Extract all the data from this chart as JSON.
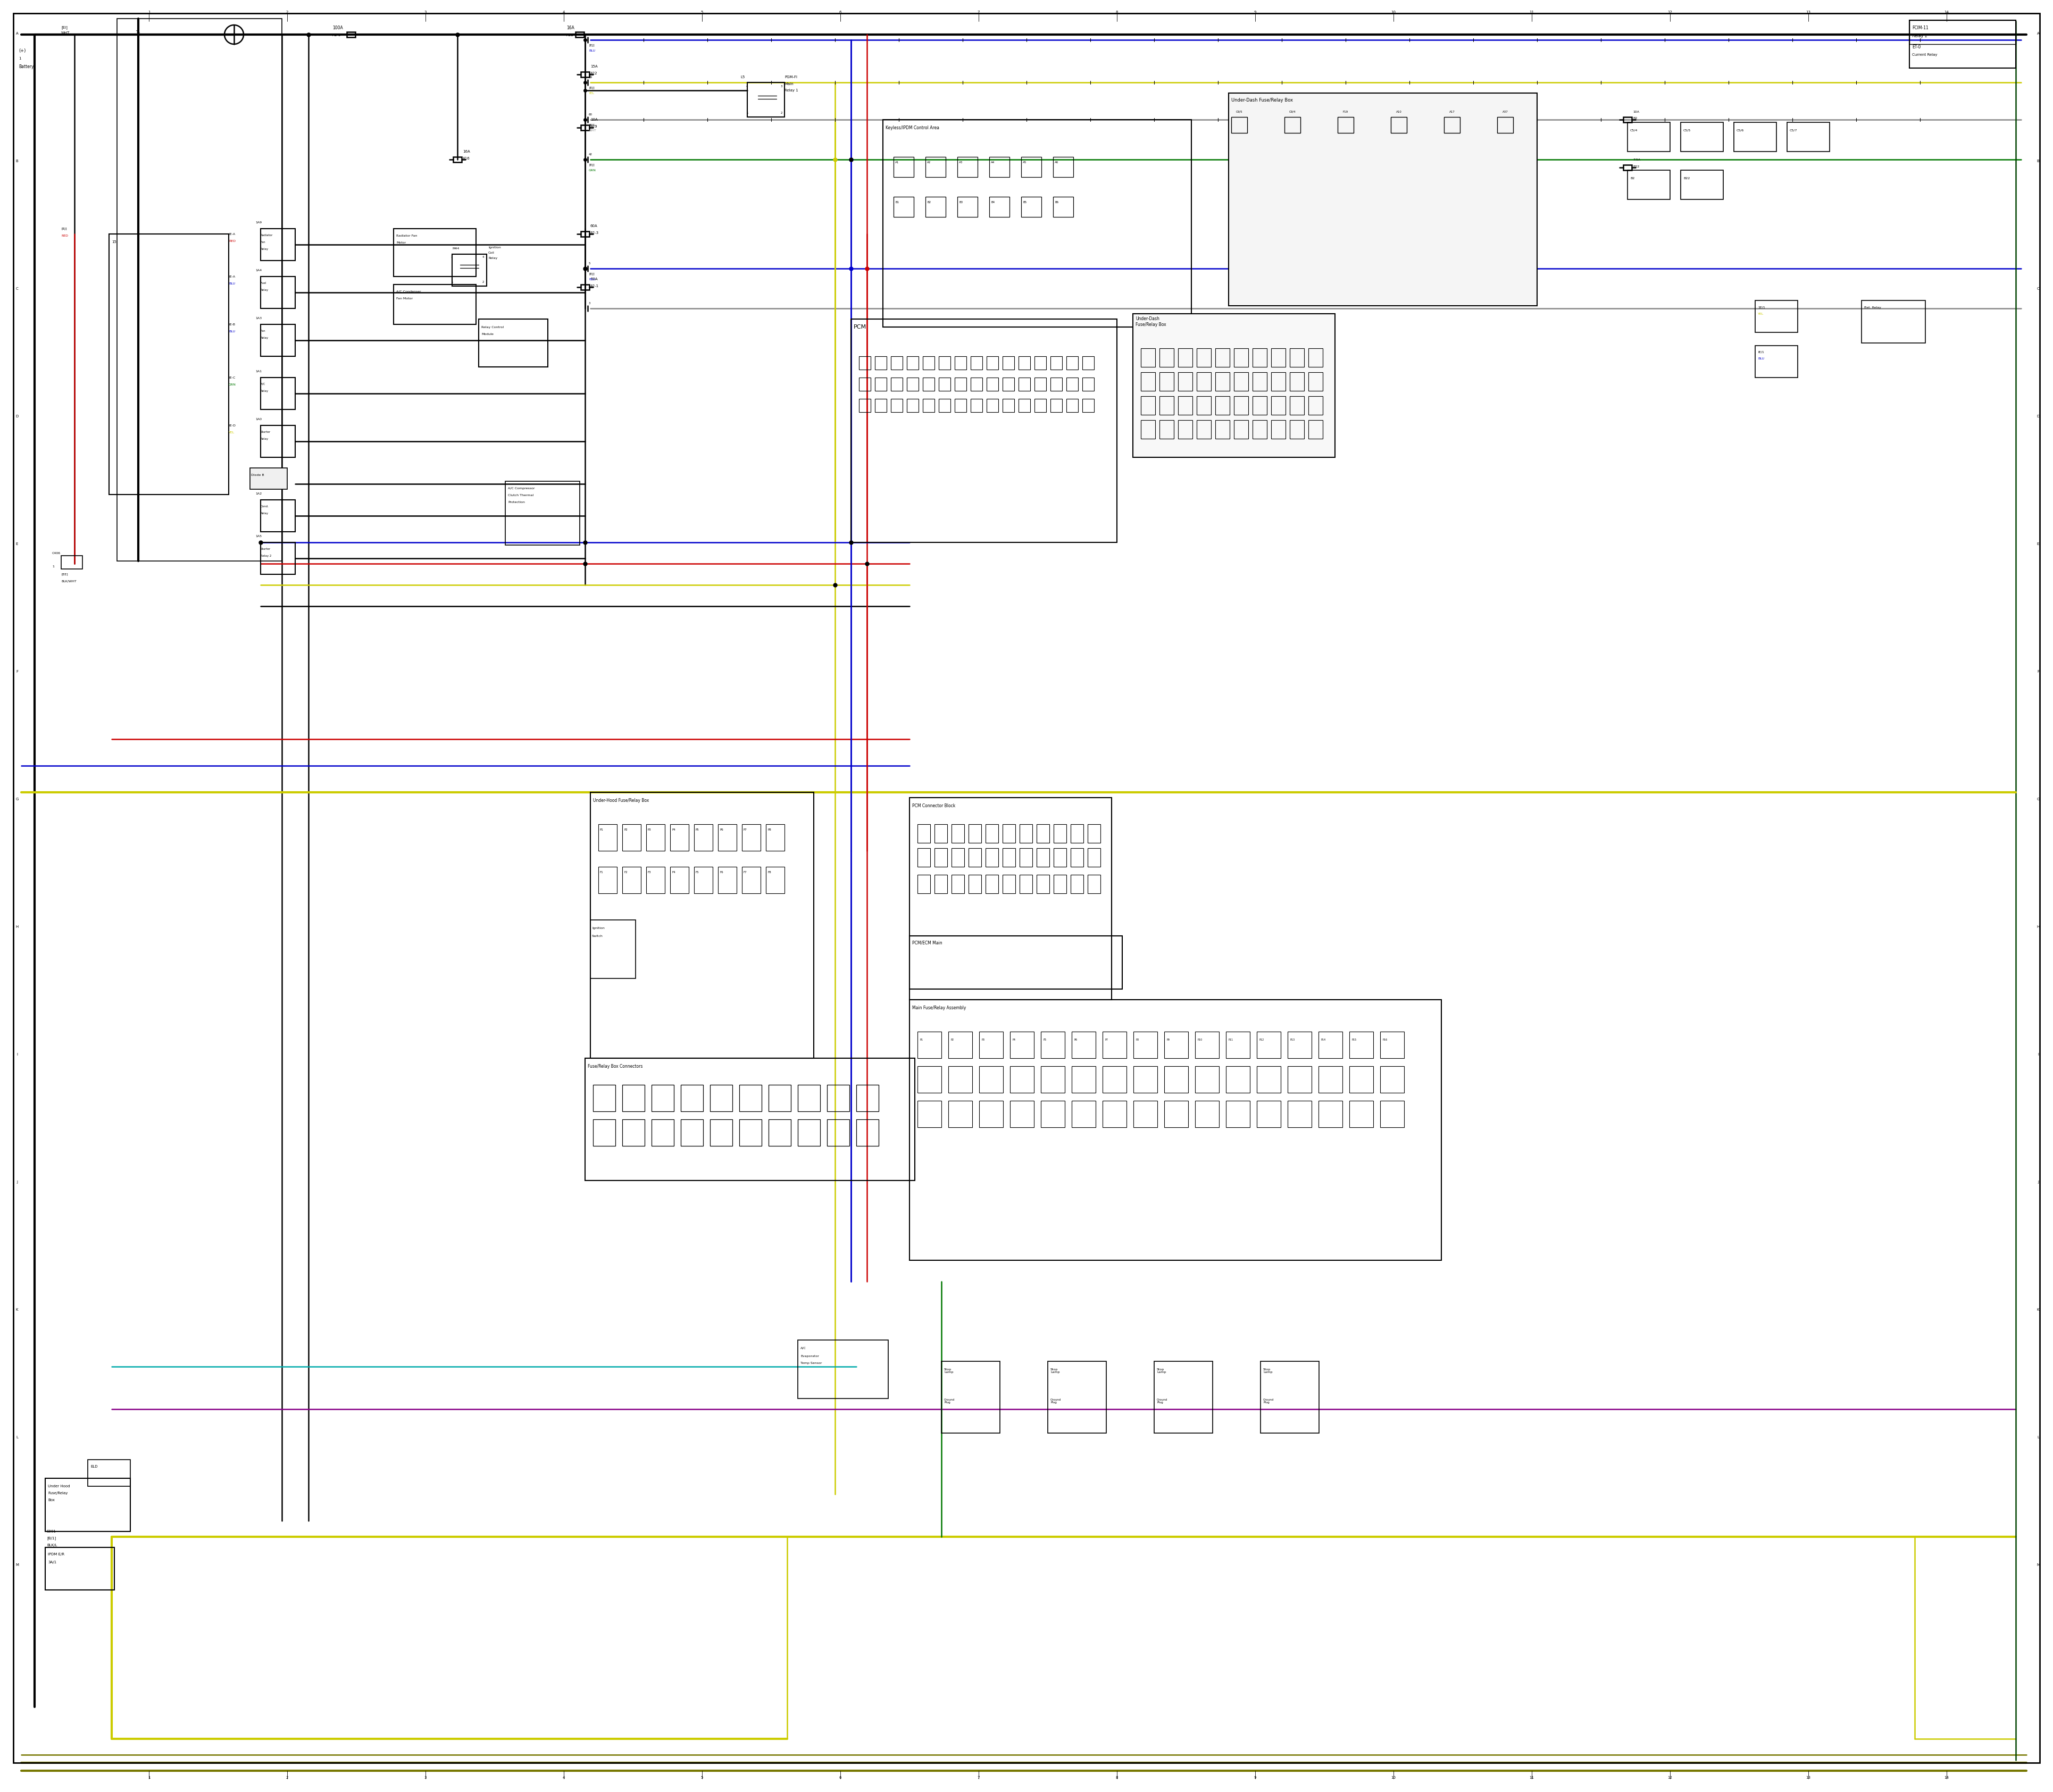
{
  "bg": "#ffffff",
  "lc": "#000000",
  "colors": {
    "BK": "#000000",
    "RD": "#cc0000",
    "BL": "#0000cc",
    "YL": "#cccc00",
    "GN": "#007700",
    "GY": "#888888",
    "DY": "#777700",
    "CY": "#00aaaa",
    "PU": "#880088",
    "DG": "#004400",
    "WHT": "#aaaaaa"
  },
  "lw": 1.8,
  "tlw": 3.0
}
